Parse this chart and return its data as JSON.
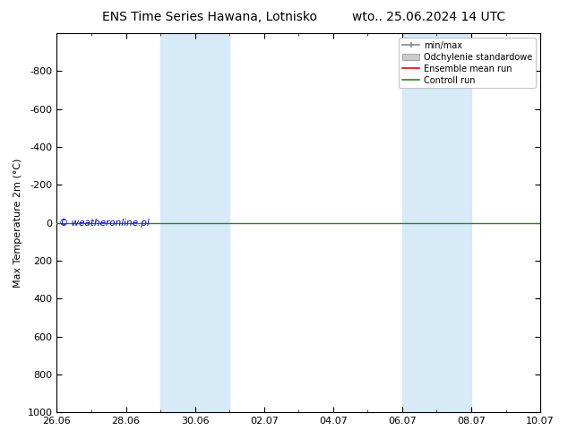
{
  "title_left": "ENS Time Series Hawana, Lotnisko",
  "title_right": "wto.. 25.06.2024 14 UTC",
  "ylabel": "Max Temperature 2m (°C)",
  "yticks": [
    -800,
    -600,
    -400,
    -200,
    0,
    200,
    400,
    600,
    800,
    1000
  ],
  "xtick_labels": [
    "26.06",
    "28.06",
    "30.06",
    "02.07",
    "04.07",
    "06.07",
    "08.07",
    "10.07"
  ],
  "xtick_positions": [
    0,
    2,
    4,
    6,
    8,
    10,
    12,
    14
  ],
  "shade_bands": [
    {
      "x_start": 3.0,
      "x_end": 5.0
    },
    {
      "x_start": 10.0,
      "x_end": 12.0
    }
  ],
  "shade_color": "#d6eaf8",
  "control_run_y": 0,
  "control_run_color": "#228B22",
  "ensemble_mean_color": "#ff0000",
  "minmax_color": "#888888",
  "std_color": "#bbbbbb",
  "copyright_text": "© weatheronline.pl",
  "copyright_color": "#0000cc",
  "background_color": "#ffffff",
  "plot_bg_color": "#ffffff",
  "legend_labels": [
    "min/max",
    "Odchylenie standardowe",
    "Ensemble mean run",
    "Controll run"
  ],
  "legend_colors": [
    "#888888",
    "#cccccc",
    "#ff0000",
    "#228B22"
  ],
  "title_fontsize": 10,
  "axis_fontsize": 8,
  "tick_fontsize": 8
}
